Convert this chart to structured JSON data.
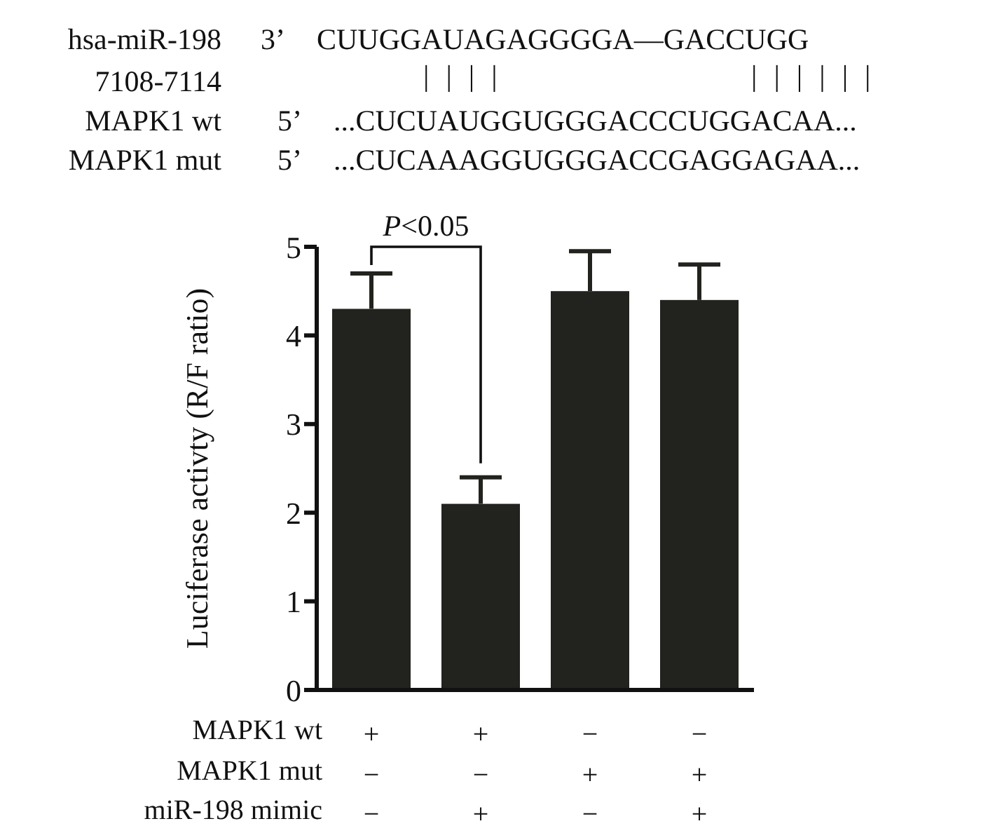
{
  "chart_data": {
    "type": "bar",
    "ylabel": "Luciferase activty (R/F ratio)",
    "categories": [
      "+\n−\n−",
      "+\n−\n+",
      "−\n+\n−",
      "−\n+\n+"
    ],
    "values": [
      4.3,
      2.1,
      4.5,
      4.4
    ],
    "errors": [
      [
        4.3,
        4.7
      ],
      [
        2.1,
        2.4
      ],
      [
        4.5,
        4.95
      ],
      [
        4.4,
        4.8
      ]
    ],
    "color": "#22221e",
    "ylim": [
      0,
      5
    ],
    "yticks": [
      0,
      1,
      2,
      3,
      4,
      5
    ],
    "grid": false,
    "legend": false,
    "annotations": [
      "hsa-miR-198",
      "3’",
      "CUUGGAUAGAGGGGA—GACCUGG",
      "7108-7114",
      "||||",
      "||||||",
      "MAPK1 wt",
      "5’",
      "...CUCUAUGGUGGGACCCUGGACAA...",
      "MAPK1 mut",
      "5’",
      "...CUCAAAGGUGGGACCGAGGAGAA...",
      "P<0.05",
      "MAPK1 wt",
      "MAPK1 mut",
      "miR-198 mimic"
    ]
  }
}
